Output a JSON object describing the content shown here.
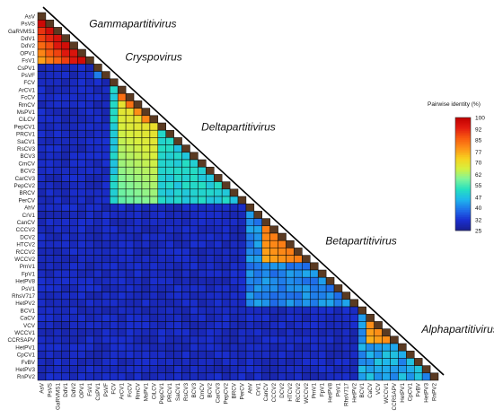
{
  "chart_data": {
    "type": "heatmap",
    "labels": [
      "AsV",
      "PsVS",
      "GaRVMS1",
      "DdV1",
      "DdV2",
      "OPV1",
      "FsV1",
      "CsPV1",
      "PsVF",
      "FCV",
      "ArCV1",
      "FcCV",
      "RmCV",
      "MsPV1",
      "CiLCV",
      "PepCV1",
      "PRCV1",
      "SaCV1",
      "RsCV3",
      "BCV3",
      "CmCV",
      "BCV2",
      "CarCV3",
      "PepCV2",
      "BRCV",
      "PerCV",
      "AhV",
      "CrV1",
      "CanCV",
      "CCCV2",
      "DCV2",
      "HTCV2",
      "RCCV2",
      "WCCV2",
      "PmV1",
      "FpV1",
      "HetPV8",
      "PsV1",
      "RhsV717",
      "HetPV2",
      "BCV1",
      "CaCV",
      "VCV",
      "WCCV1",
      "CCRSAPV",
      "HetPV1",
      "CpCV1",
      "FvBV",
      "HetPV3",
      "RnPV2"
    ],
    "groups": [
      {
        "name": "Gammapartitivirus",
        "range": [
          0,
          6
        ],
        "within": [
          75,
          100
        ]
      },
      {
        "name": "Cryspovirus",
        "range": [
          7,
          8
        ],
        "within": [
          40,
          40
        ]
      },
      {
        "name": "Deltapartitivirus",
        "range": [
          9,
          25
        ],
        "within": [
          45,
          90
        ]
      },
      {
        "name": "Betapartitivirus",
        "range": [
          26,
          39
        ],
        "within": [
          35,
          85
        ]
      },
      {
        "name": "Alphapartitivirus",
        "range": [
          40,
          49
        ],
        "within": [
          35,
          85
        ]
      }
    ],
    "between_group_identity": 28,
    "diagonal_identity": 100,
    "color_scale": {
      "title": "Pairwise identity (%)",
      "ticks": [
        100,
        92,
        85,
        77,
        70,
        62,
        55,
        47,
        40,
        32,
        25
      ],
      "colors": [
        "#c00000",
        "#e21b10",
        "#f85a10",
        "#fd9218",
        "#f7d21f",
        "#d6f040",
        "#7ff59b",
        "#25e0c0",
        "#1fb6ec",
        "#1f70ea",
        "#1a2fd0",
        "#181e8e"
      ],
      "range": [
        25,
        100
      ]
    },
    "colors": {
      "grid_line": "#050505",
      "diagonal_cell": "#5a3a22",
      "background": "#ffffff"
    }
  }
}
